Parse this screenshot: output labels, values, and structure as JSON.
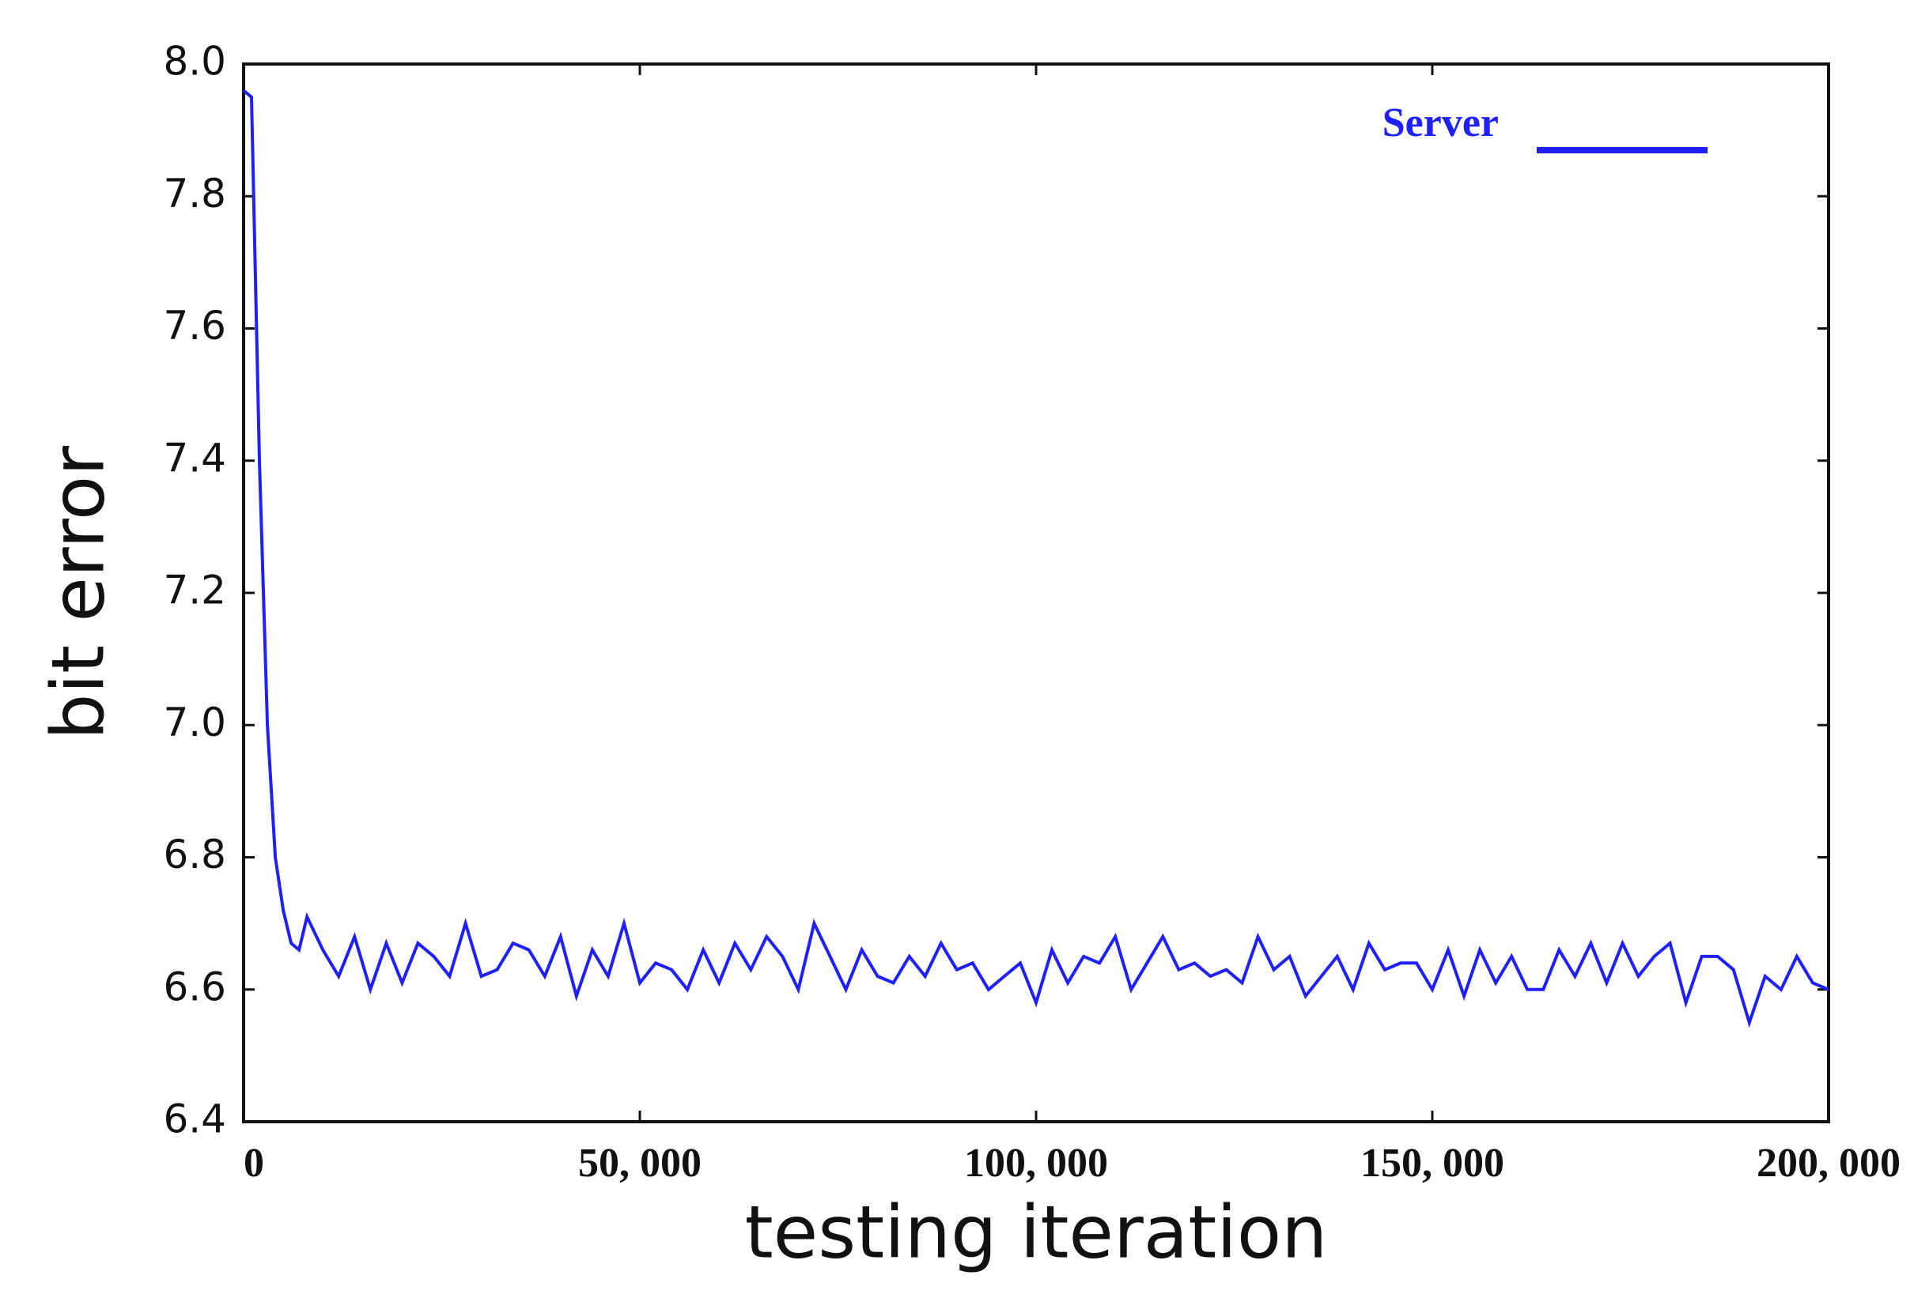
{
  "chart_data": {
    "type": "line",
    "x_label": "testing iteration",
    "y_label": "bit error",
    "x": [
      0,
      1000,
      2000,
      3000,
      4000,
      5000,
      6000,
      7000,
      8000,
      10000,
      12000,
      14000,
      16000,
      18000,
      20000,
      22000,
      24000,
      26000,
      28000,
      30000,
      32000,
      34000,
      36000,
      38000,
      40000,
      42000,
      44000,
      46000,
      48000,
      50000,
      52000,
      54000,
      56000,
      58000,
      60000,
      62000,
      64000,
      66000,
      68000,
      70000,
      72000,
      74000,
      76000,
      78000,
      80000,
      82000,
      84000,
      86000,
      88000,
      90000,
      92000,
      94000,
      96000,
      98000,
      100000,
      102000,
      104000,
      106000,
      108000,
      110000,
      112000,
      114000,
      116000,
      118000,
      120000,
      122000,
      124000,
      126000,
      128000,
      130000,
      132000,
      134000,
      136000,
      138000,
      140000,
      142000,
      144000,
      146000,
      148000,
      150000,
      152000,
      154000,
      156000,
      158000,
      160000,
      162000,
      164000,
      166000,
      168000,
      170000,
      172000,
      174000,
      176000,
      178000,
      180000,
      182000,
      184000,
      186000,
      188000,
      190000,
      192000,
      194000,
      196000,
      198000,
      200000
    ],
    "series": [
      {
        "name": "Server",
        "color": "#1f1fff",
        "values": [
          7.96,
          7.95,
          7.4,
          7.0,
          6.8,
          6.72,
          6.67,
          6.66,
          6.71,
          6.66,
          6.62,
          6.68,
          6.6,
          6.67,
          6.61,
          6.67,
          6.65,
          6.62,
          6.7,
          6.62,
          6.63,
          6.67,
          6.66,
          6.62,
          6.68,
          6.59,
          6.66,
          6.62,
          6.7,
          6.61,
          6.64,
          6.63,
          6.6,
          6.66,
          6.61,
          6.67,
          6.63,
          6.68,
          6.65,
          6.6,
          6.7,
          6.65,
          6.6,
          6.66,
          6.62,
          6.61,
          6.65,
          6.62,
          6.67,
          6.63,
          6.64,
          6.6,
          6.62,
          6.64,
          6.58,
          6.66,
          6.61,
          6.65,
          6.64,
          6.68,
          6.6,
          6.64,
          6.68,
          6.63,
          6.64,
          6.62,
          6.63,
          6.61,
          6.68,
          6.63,
          6.65,
          6.59,
          6.62,
          6.65,
          6.6,
          6.67,
          6.63,
          6.64,
          6.64,
          6.6,
          6.66,
          6.59,
          6.66,
          6.61,
          6.65,
          6.6,
          6.6,
          6.66,
          6.62,
          6.67,
          6.61,
          6.67,
          6.62,
          6.65,
          6.67,
          6.58,
          6.65,
          6.65,
          6.63,
          6.55,
          6.62,
          6.6,
          6.65,
          6.61,
          6.6
        ]
      }
    ],
    "xlim": [
      0,
      200000
    ],
    "xticks": [
      0,
      {
        "value": 50000,
        "label": "50, 000"
      },
      {
        "value": 100000,
        "label": "100, 000"
      },
      {
        "value": 150000,
        "label": "150, 000"
      },
      {
        "value": 200000,
        "label": "200, 000"
      }
    ],
    "ylim": [
      6.4,
      8.0
    ],
    "yticks": [
      6.4,
      6.6,
      6.8,
      {
        "value": 7.0,
        "label": "7.0"
      },
      7.2,
      7.4,
      7.6,
      7.8,
      {
        "value": 8.0,
        "label": "8.0"
      }
    ],
    "legend": "upper right"
  }
}
